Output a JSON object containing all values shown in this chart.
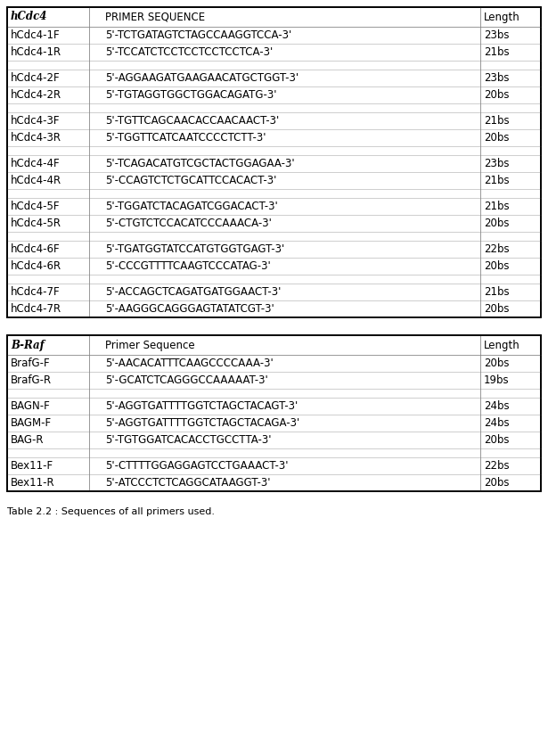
{
  "table1_header": [
    "hCdc4",
    "PRIMER SEQUENCE",
    "Length"
  ],
  "table1_rows": [
    [
      "hCdc4-1F",
      "5'-TCTGATAGTCTAGCCAAGGTCCA-3'",
      "23bs"
    ],
    [
      "hCdc4-1R",
      "5'-TCCATCTCCTCCTCCTCCTCA-3'",
      "21bs"
    ],
    [
      "",
      "",
      ""
    ],
    [
      "hCdc4-2F",
      "5'-AGGAAGATGAAGAACATGCTGGT-3'",
      "23bs"
    ],
    [
      "hCdc4-2R",
      "5'-TGTAGGTGGCTGGACAGATG-3'",
      "20bs"
    ],
    [
      "",
      "",
      ""
    ],
    [
      "hCdc4-3F",
      "5'-TGTTCAGCAACACCAACAACT-3'",
      "21bs"
    ],
    [
      "hCdc4-3R",
      "5'-TGGTTCATCAATCCCCTCTT-3'",
      "20bs"
    ],
    [
      "",
      "",
      ""
    ],
    [
      "hCdc4-4F",
      "5'-TCAGACATGTCGCTACTGGAGAA-3'",
      "23bs"
    ],
    [
      "hCdc4-4R",
      "5'-CCAGTCTCTGCATTCCACACT-3'",
      "21bs"
    ],
    [
      "",
      "",
      ""
    ],
    [
      "hCdc4-5F",
      "5'-TGGATCTACAGATCGGACACT-3'",
      "21bs"
    ],
    [
      "hCdc4-5R",
      "5'-CTGTCTCCACATCCCAAACA-3'",
      "20bs"
    ],
    [
      "",
      "",
      ""
    ],
    [
      "hCdc4-6F",
      "5'-TGATGGTATCCATGTGGTGAGT-3'",
      "22bs"
    ],
    [
      "hCdc4-6R",
      "5'-CCCGTTTTCAAGTCCCATAG-3'",
      "20bs"
    ],
    [
      "",
      "",
      ""
    ],
    [
      "hCdc4-7F",
      "5'-ACCAGCTCAGATGATGGAACT-3'",
      "21bs"
    ],
    [
      "hCdc4-7R",
      "5'-AAGGGCAGGGAGTATATCGT-3'",
      "20bs"
    ]
  ],
  "table2_header": [
    "B-Raf",
    "Primer Sequence",
    "Length"
  ],
  "table2_rows": [
    [
      "BrafG-F",
      "5'-AACACATTTCAAGCCCCAAA-3'",
      "20bs"
    ],
    [
      "BrafG-R",
      "5'-GCATCTCAGGGCCAAAAAT-3'",
      "19bs"
    ],
    [
      "",
      "",
      ""
    ],
    [
      "BAGN-F",
      "5'-AGGTGATTTTGGTCTAGCTACAGT-3'",
      "24bs"
    ],
    [
      "BAGM-F",
      "5'-AGGTGATTTTGGTCTAGCTACAGA-3'",
      "24bs"
    ],
    [
      "BAG-R",
      "5'-TGTGGATCACACCTGCCTTA-3'",
      "20bs"
    ],
    [
      "",
      "",
      ""
    ],
    [
      "Bex11-F",
      "5'-CTTTTGGAGGAGTCCTGAAACT-3'",
      "22bs"
    ],
    [
      "Bex11-R",
      "5'-ATCCCTCTCAGGCATAAGGT-3'",
      "20bs"
    ]
  ],
  "caption": "Table 2.2 : Sequences of all primers used.",
  "bg_color": "#ffffff",
  "border_color": "#000000",
  "text_color": "#000000",
  "font_size": 8.5,
  "header_font_size": 8.5
}
